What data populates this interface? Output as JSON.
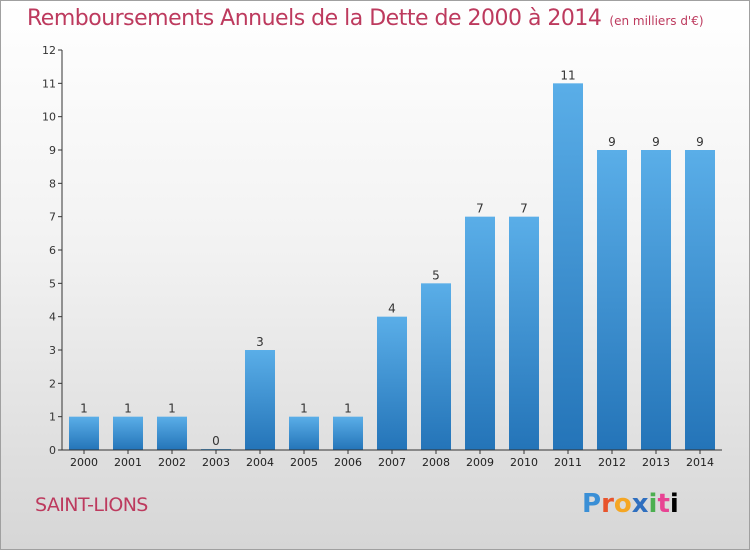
{
  "header": {
    "title": "Remboursements Annuels de la Dette de 2000 à 2014",
    "subtitle": "(en milliers d'€)"
  },
  "commune": "SAINT-LIONS",
  "brand": {
    "letters": [
      "P",
      "r",
      "o",
      "x",
      "i",
      "t",
      "i"
    ]
  },
  "colors": {
    "title": "#bd3a5e",
    "bar_top": "#5aaee8",
    "bar_bottom": "#2474b8"
  },
  "chart_data": {
    "type": "bar",
    "title": "Remboursements Annuels de la Dette de 2000 à 2014",
    "subtitle": "(en milliers d'€)",
    "categories": [
      "2000",
      "2001",
      "2002",
      "2003",
      "2004",
      "2005",
      "2006",
      "2007",
      "2008",
      "2009",
      "2010",
      "2011",
      "2012",
      "2013",
      "2014"
    ],
    "values": [
      1,
      1,
      1,
      0,
      3,
      1,
      1,
      4,
      5,
      7,
      7,
      11,
      9,
      9,
      9
    ],
    "ylim": [
      0,
      12
    ],
    "yticks": [
      0,
      1,
      2,
      3,
      4,
      5,
      6,
      7,
      8,
      9,
      10,
      11,
      12
    ],
    "xlabel": "",
    "ylabel": "",
    "grid": false,
    "legend": "none"
  }
}
